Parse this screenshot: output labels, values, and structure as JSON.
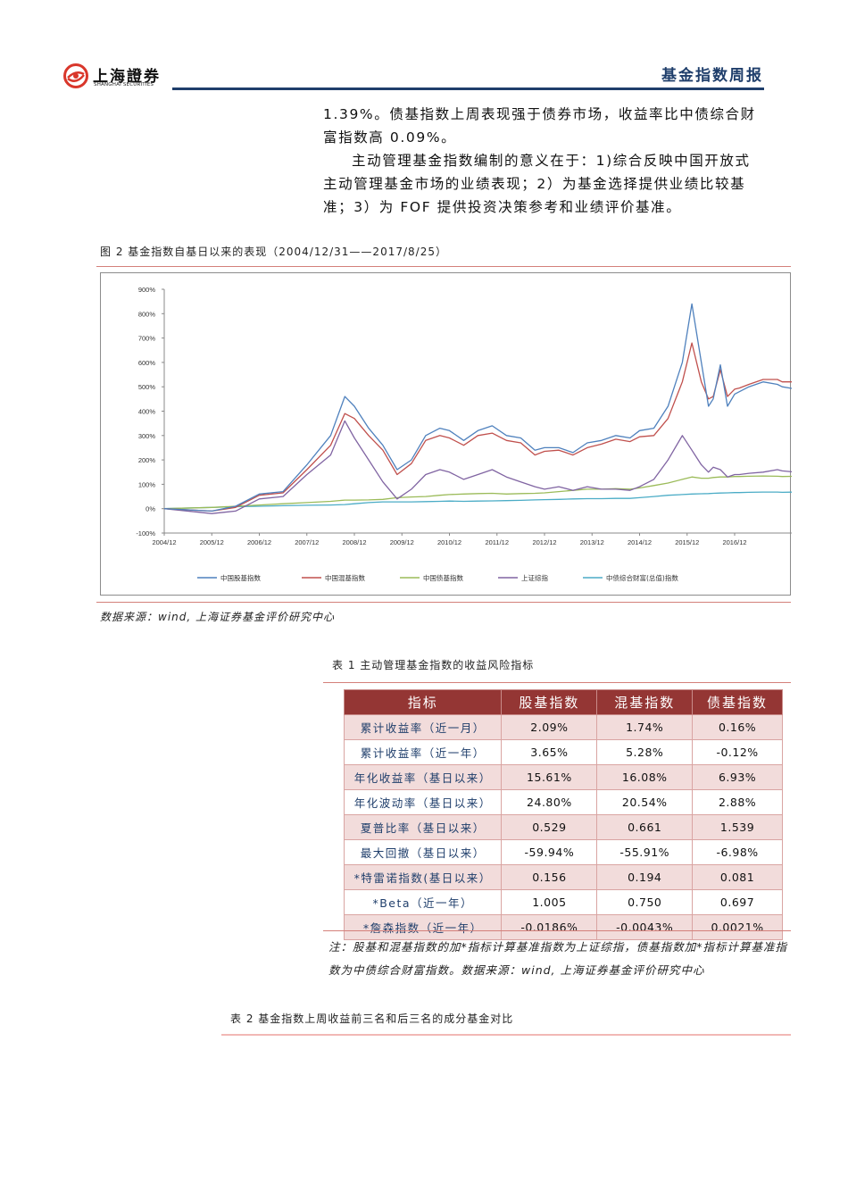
{
  "header": {
    "logo_cn": "上海證券",
    "logo_en": "SHANGHAI SECURITIES",
    "report_title": "基金指数周报",
    "rule_color": "#1f3e6b"
  },
  "body": {
    "paragraph1": "1.39%。债基指数上周表现强于债券市场，收益率比中债综合财富指数高 0.09%。",
    "paragraph2": "主动管理基金指数编制的意义在于：1)综合反映中国开放式主动管理基金市场的业绩表现；2）为基金选择提供业绩比较基准；3）为 FOF 提供投资决策参考和业绩评价基准。"
  },
  "figure2": {
    "caption": "图 2 基金指数自基日以来的表现（2004/12/31——2017/8/25）",
    "source": "数据来源：wind, 上海证券基金评价研究中心"
  },
  "chart_data": {
    "type": "line",
    "title": "基金指数自基日以来的表现（2004/12/31——2017/8/25）",
    "xlabel": "",
    "ylabel": "",
    "ylim": [
      -100,
      900
    ],
    "yticks": [
      "900%",
      "800%",
      "700%",
      "600%",
      "500%",
      "400%",
      "300%",
      "200%",
      "100%",
      "0%",
      "-100%"
    ],
    "xticks": [
      "2004/12",
      "2005/12",
      "2006/12",
      "2007/12",
      "2008/12",
      "2009/12",
      "2010/12",
      "2011/12",
      "2012/12",
      "2013/12",
      "2014/12",
      "2015/12",
      "2016/12"
    ],
    "grid": false,
    "legend_position": "bottom",
    "x": [
      2004.0,
      2005.0,
      2005.5,
      2006.0,
      2006.5,
      2007.0,
      2007.5,
      2007.8,
      2008.0,
      2008.3,
      2008.6,
      2008.9,
      2009.2,
      2009.5,
      2009.8,
      2010.0,
      2010.3,
      2010.6,
      2010.9,
      2011.2,
      2011.5,
      2011.8,
      2012.0,
      2012.3,
      2012.6,
      2012.9,
      2013.2,
      2013.5,
      2013.8,
      2014.0,
      2014.3,
      2014.6,
      2014.9,
      2015.1,
      2015.3,
      2015.45,
      2015.55,
      2015.7,
      2015.85,
      2016.0,
      2016.1,
      2016.3,
      2016.6,
      2016.9,
      2017.0,
      2017.3,
      2017.65
    ],
    "series": [
      {
        "name": "中国股基指数",
        "color": "#4f81bd",
        "values": [
          0,
          -10,
          10,
          60,
          70,
          180,
          300,
          460,
          420,
          330,
          260,
          160,
          200,
          300,
          330,
          320,
          280,
          320,
          340,
          300,
          290,
          240,
          250,
          250,
          230,
          270,
          280,
          300,
          290,
          320,
          330,
          420,
          600,
          840,
          600,
          420,
          450,
          590,
          420,
          470,
          480,
          500,
          520,
          510,
          500,
          490,
          525
        ]
      },
      {
        "name": "中国混基指数",
        "color": "#c0504d",
        "values": [
          0,
          -10,
          5,
          55,
          65,
          160,
          260,
          390,
          370,
          300,
          240,
          140,
          185,
          280,
          300,
          290,
          260,
          300,
          310,
          280,
          270,
          220,
          235,
          240,
          220,
          250,
          265,
          285,
          275,
          295,
          300,
          370,
          520,
          680,
          520,
          450,
          460,
          570,
          460,
          490,
          495,
          510,
          530,
          530,
          520,
          520,
          555
        ]
      },
      {
        "name": "中国债基指数",
        "color": "#9bbb59",
        "values": [
          0,
          5,
          10,
          15,
          20,
          25,
          30,
          35,
          35,
          36,
          38,
          45,
          48,
          50,
          55,
          58,
          60,
          62,
          63,
          60,
          62,
          63,
          65,
          70,
          75,
          80,
          80,
          82,
          80,
          85,
          95,
          105,
          120,
          130,
          125,
          125,
          128,
          130,
          130,
          132,
          132,
          133,
          134,
          133,
          132,
          133,
          135
        ]
      },
      {
        "name": "上证综指",
        "color": "#8064a2",
        "values": [
          0,
          -20,
          -10,
          40,
          50,
          140,
          220,
          360,
          290,
          200,
          110,
          40,
          80,
          140,
          160,
          150,
          120,
          140,
          160,
          130,
          110,
          90,
          80,
          90,
          75,
          90,
          80,
          80,
          75,
          90,
          120,
          200,
          300,
          240,
          180,
          150,
          170,
          160,
          130,
          140,
          140,
          145,
          150,
          160,
          155,
          150,
          160
        ]
      },
      {
        "name": "中债综合财富(总值)指数",
        "color": "#4bacc6",
        "values": [
          0,
          5,
          8,
          10,
          12,
          14,
          15,
          17,
          20,
          25,
          28,
          28,
          28,
          29,
          30,
          31,
          30,
          31,
          32,
          33,
          34,
          36,
          37,
          38,
          40,
          41,
          41,
          42,
          42,
          45,
          50,
          55,
          58,
          60,
          61,
          62,
          63,
          64,
          65,
          66,
          66,
          67,
          68,
          68,
          67,
          68,
          70
        ]
      }
    ]
  },
  "table1": {
    "caption": "表 1 主动管理基金指数的收益风险指标",
    "header_color": "#943634",
    "shade_color": "#f2dcdb",
    "columns": [
      "指标",
      "股基指数",
      "混基指数",
      "债基指数"
    ],
    "rows": [
      [
        "累计收益率（近一月）",
        "2.09%",
        "1.74%",
        "0.16%"
      ],
      [
        "累计收益率（近一年）",
        "3.65%",
        "5.28%",
        "-0.12%"
      ],
      [
        "年化收益率（基日以来）",
        "15.61%",
        "16.08%",
        "6.93%"
      ],
      [
        "年化波动率（基日以来）",
        "24.80%",
        "20.54%",
        "2.88%"
      ],
      [
        "夏普比率（基日以来）",
        "0.529",
        "0.661",
        "1.539"
      ],
      [
        "最大回撤（基日以来）",
        "-59.94%",
        "-55.91%",
        "-6.98%"
      ],
      [
        "*特雷诺指数(基日以来）",
        "0.156",
        "0.194",
        "0.081"
      ],
      [
        "*Beta（近一年）",
        "1.005",
        "0.750",
        "0.697"
      ],
      [
        "*詹森指数（近一年）",
        "-0.0186%",
        "-0.0043%",
        "0.0021%"
      ]
    ],
    "note": "注：股基和混基指数的加*指标计算基准指数为上证综指，债基指数加*指标计算基准指数为中债综合财富指数。数据来源：wind, 上海证券基金评价研究中心"
  },
  "table2": {
    "caption": "表 2 基金指数上周收益前三名和后三名的成分基金对比"
  }
}
